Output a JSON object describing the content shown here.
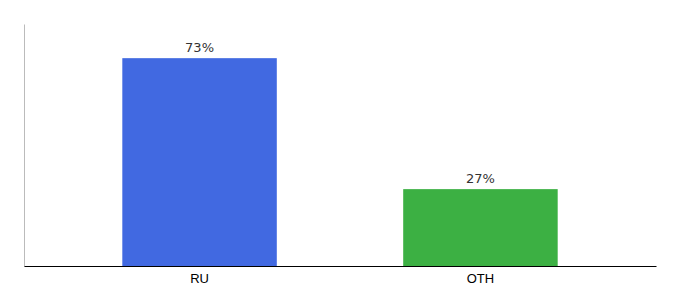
{
  "chart_data": {
    "type": "bar",
    "categories": [
      "RU",
      "OTH"
    ],
    "values": [
      73,
      27
    ],
    "value_labels": [
      "73%",
      "27%"
    ],
    "colors": [
      "#4169e1",
      "#3cb043"
    ],
    "ylim": [
      0,
      85
    ],
    "data_labels": true,
    "tick_labels": "x"
  }
}
